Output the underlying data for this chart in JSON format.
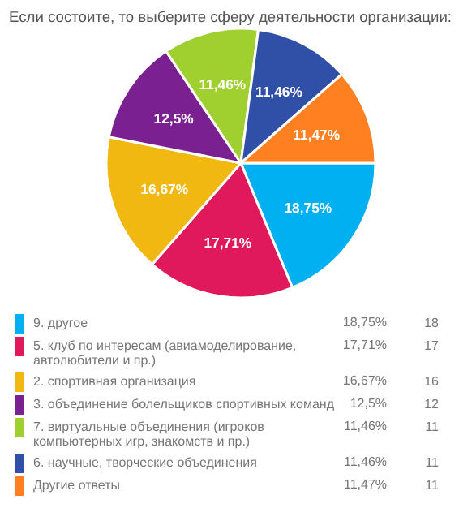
{
  "chart_data": {
    "type": "pie",
    "title": "Если состоите, то выберите сферу деятельности организации:",
    "categories": [
      "9. другое",
      "5. клуб по интересам (авиамоделирование, автолюбители и пр.)",
      "2. спортивная организация",
      "3. объединение болельщиков спортивных команд",
      "7. виртуальные объединения (игроков компьютерных игр, знакомств и пр.)",
      "6. научные, творческие объединения",
      "Другие ответы"
    ],
    "values": [
      18.75,
      17.71,
      16.67,
      12.5,
      11.46,
      11.46,
      11.47
    ],
    "value_labels": [
      "18,75%",
      "17,71%",
      "16,67%",
      "12,5%",
      "11,46%",
      "11,46%",
      "11,47%"
    ],
    "colors": [
      "#00b0f0",
      "#e0185c",
      "#f0b810",
      "#7a2090",
      "#a0d030",
      "#3050a8",
      "#ff8020"
    ],
    "annotations": [
      "18",
      "17",
      "16",
      "12",
      "11",
      "11",
      "11"
    ],
    "legend": "bottom"
  }
}
